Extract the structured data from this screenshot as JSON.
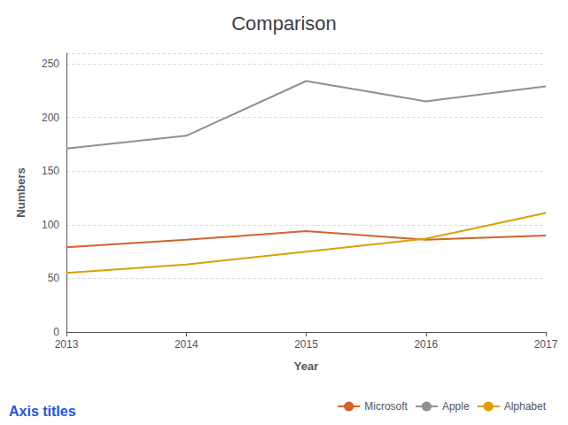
{
  "chart_data": {
    "type": "line",
    "title": "Comparison",
    "xlabel": "Year",
    "ylabel": "Numbers",
    "categories": [
      "2013",
      "2014",
      "2015",
      "2016",
      "2017"
    ],
    "series": [
      {
        "name": "Microsoft",
        "color": "#D4622A",
        "values": [
          79,
          86,
          94,
          86,
          90
        ]
      },
      {
        "name": "Apple",
        "color": "#909090",
        "values": [
          171,
          183,
          234,
          215,
          229
        ]
      },
      {
        "name": "Alphabet",
        "color": "#DAA000",
        "values": [
          55,
          63,
          75,
          87,
          111
        ]
      }
    ],
    "ylim": [
      0,
      260
    ],
    "yticks": [
      0,
      50,
      100,
      150,
      200,
      250
    ],
    "grid": true,
    "legend": "bottom",
    "annotations": [
      {
        "text": "Axis titles",
        "color": "#1E55E8"
      }
    ]
  }
}
